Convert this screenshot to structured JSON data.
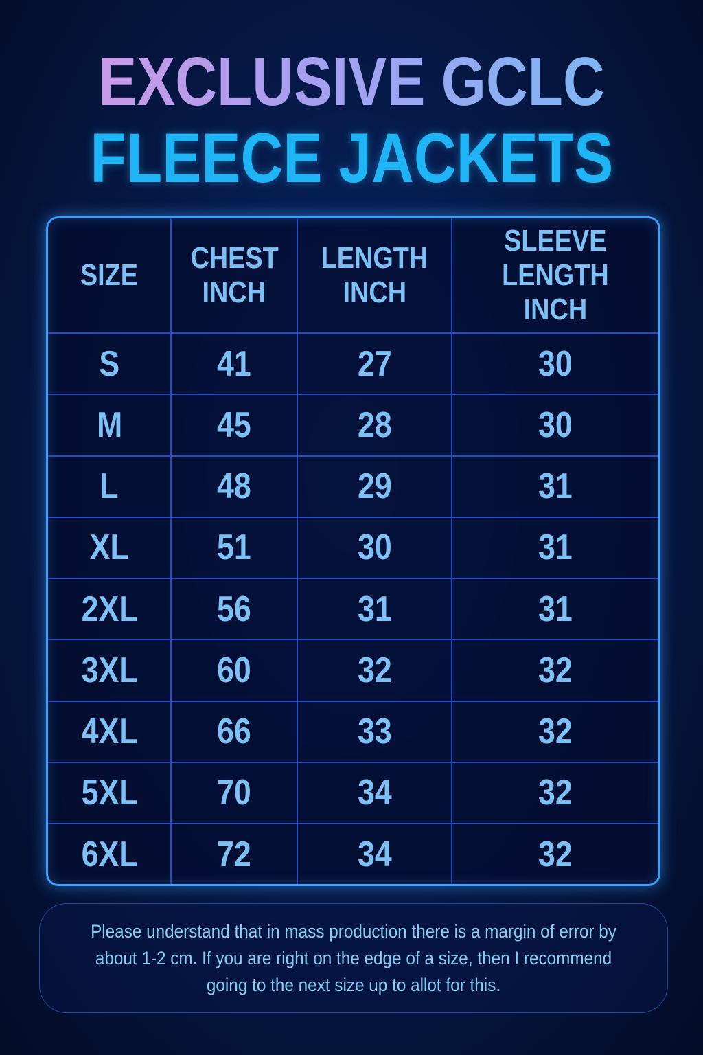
{
  "title": {
    "line1": "EXCLUSIVE GCLC",
    "line2": "FLEECE JACKETS"
  },
  "colors": {
    "accent": "#1fb4f5",
    "border": "#3aa0ff",
    "text": "#7cc0f5",
    "background": "#061a4a"
  },
  "table": {
    "headers": [
      [
        "SIZE"
      ],
      [
        "CHEST",
        "INCH"
      ],
      [
        "LENGTH",
        "INCH"
      ],
      [
        "SLEEVE",
        "LENGTH INCH"
      ]
    ],
    "rows": [
      [
        "S",
        "41",
        "27",
        "30"
      ],
      [
        "M",
        "45",
        "28",
        "30"
      ],
      [
        "L",
        "48",
        "29",
        "31"
      ],
      [
        "XL",
        "51",
        "30",
        "31"
      ],
      [
        "2XL",
        "56",
        "31",
        "31"
      ],
      [
        "3XL",
        "60",
        "32",
        "32"
      ],
      [
        "4XL",
        "66",
        "33",
        "32"
      ],
      [
        "5XL",
        "70",
        "34",
        "32"
      ],
      [
        "6XL",
        "72",
        "34",
        "32"
      ]
    ]
  },
  "note": "Please understand that in mass production there is a margin of error by about 1-2 cm. If you are right on the edge of a size, then I recommend going to the next size up to allot for this."
}
